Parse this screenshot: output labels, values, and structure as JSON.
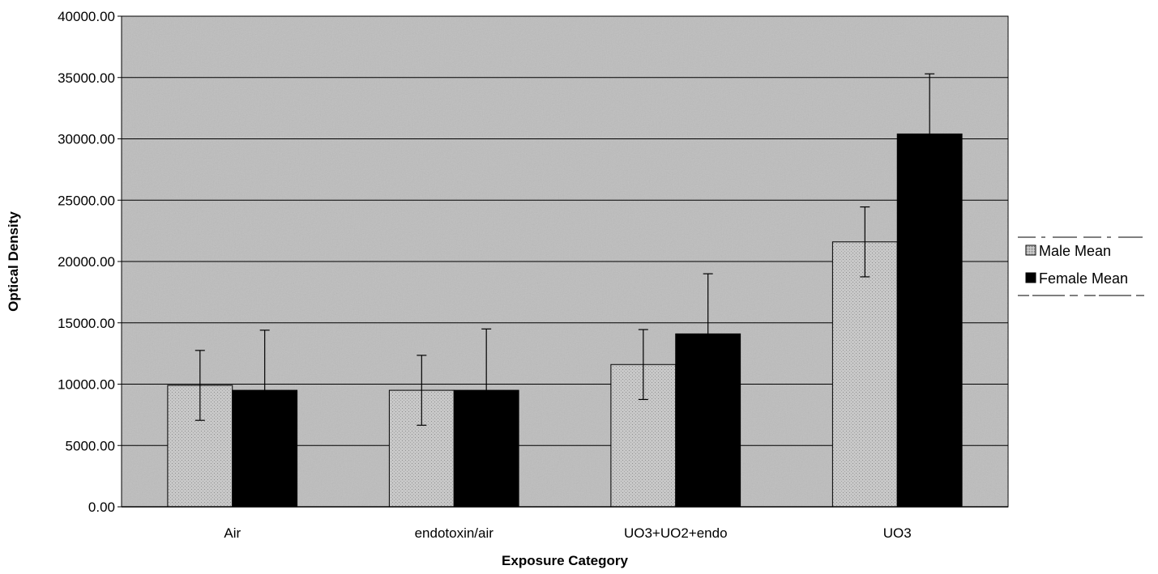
{
  "chart_data": {
    "type": "bar",
    "xlabel": "Exposure Category",
    "ylabel": "Optical Density",
    "ylim": [
      0,
      40000
    ],
    "y_tick_step": 5000,
    "y_tick_labels": [
      "0.00",
      "5000.00",
      "10000.00",
      "15000.00",
      "20000.00",
      "25000.00",
      "30000.00",
      "35000.00",
      "40000.00"
    ],
    "categories": [
      "Air",
      "endotoxin/air",
      "UO3+UO2+endo",
      "UO3"
    ],
    "series": [
      {
        "name": "Male Mean",
        "values": [
          9900,
          9500,
          11600,
          21600
        ],
        "errors": [
          2850,
          2850,
          2850,
          2850
        ],
        "color": "#c4c4c4"
      },
      {
        "name": "Female Mean",
        "values": [
          9500,
          9500,
          14100,
          30400
        ],
        "errors": [
          4900,
          5000,
          4900,
          4900
        ],
        "color": "#000000"
      }
    ],
    "grid": true,
    "legend_position": "right",
    "plot_background": "#bdbdbd"
  }
}
